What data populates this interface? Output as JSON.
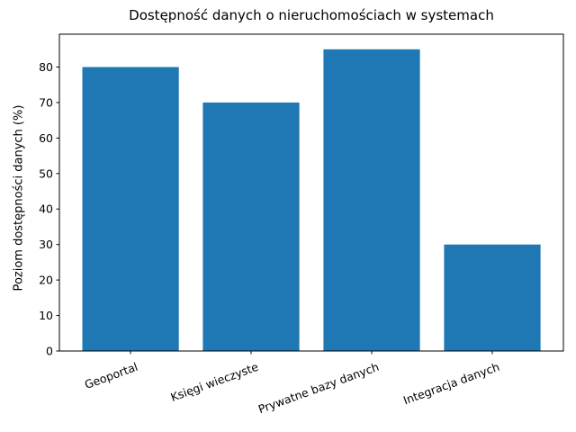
{
  "chart_data": {
    "type": "bar",
    "title": "Dostępność danych o nieruchomościach w systemach",
    "xlabel": "",
    "ylabel": "Poziom dostępności danych (%)",
    "categories": [
      "Geoportal",
      "Księgi wieczyste",
      "Prywatne bazy danych",
      "Integracja danych"
    ],
    "values": [
      80,
      70,
      85,
      30
    ],
    "yticks": [
      0,
      10,
      20,
      30,
      40,
      50,
      60,
      70,
      80
    ],
    "ylim": [
      0,
      89.25
    ],
    "bar_color": "#1f77b4",
    "x_tick_rotation_deg": 20,
    "grid": false,
    "legend": false
  }
}
